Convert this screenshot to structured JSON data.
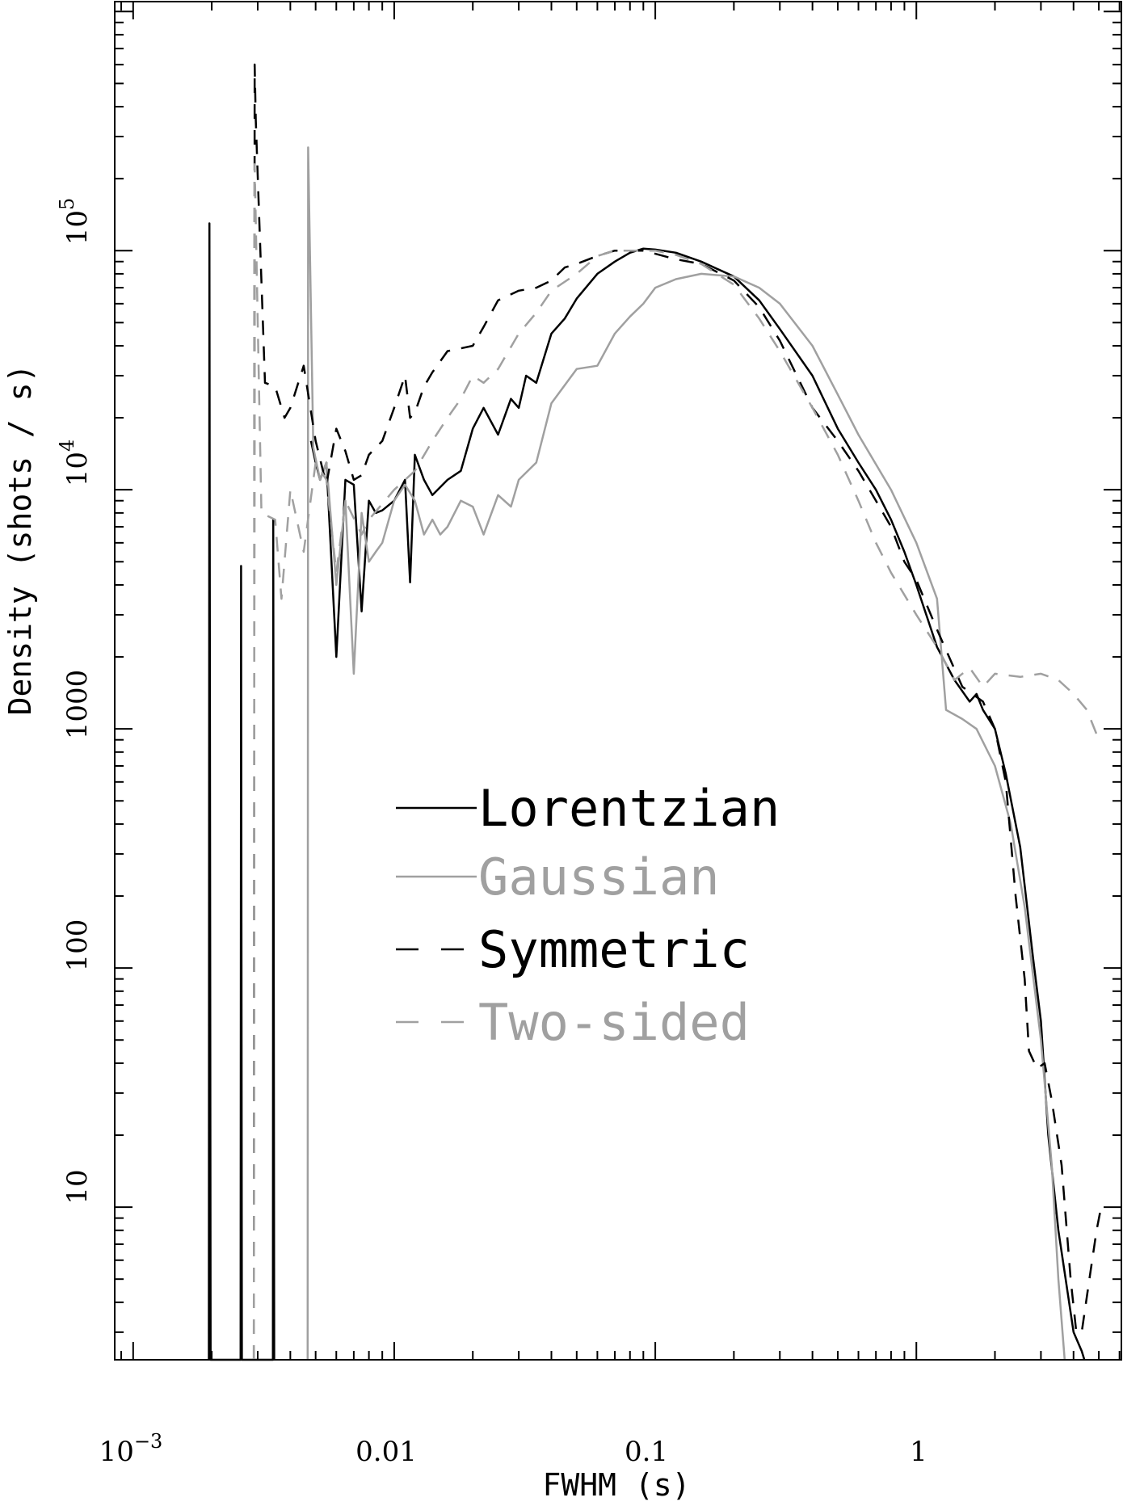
{
  "chart_data": {
    "type": "line",
    "title": "",
    "xlabel": "FWHM (s)",
    "ylabel": "Density (shots / s)",
    "xscale": "log",
    "yscale": "log",
    "xlim": [
      0.00085,
      6.1
    ],
    "ylim": [
      2.3,
      1100000
    ],
    "x_ticks": [
      {
        "value": 0.001,
        "base": "10",
        "exp": "−3"
      },
      {
        "value": 0.01,
        "label": "0.01"
      },
      {
        "value": 0.1,
        "label": "0.1"
      },
      {
        "value": 1,
        "label": "1"
      }
    ],
    "y_ticks": [
      {
        "value": 10,
        "label": "10"
      },
      {
        "value": 100,
        "label": "100"
      },
      {
        "value": 1000,
        "label": "1000"
      },
      {
        "value": 10000,
        "base": "10",
        "exp": "4"
      },
      {
        "value": 100000,
        "base": "10",
        "exp": "5"
      }
    ],
    "legend": {
      "position": "center"
    },
    "series": [
      {
        "name": "Lorentzian",
        "color": "#000000",
        "dash": "solid",
        "points": [
          [
            0.00195,
            2.3
          ],
          [
            0.00196,
            130000
          ],
          [
            0.00198,
            2.3
          ],
          [
            0.00258,
            2.3
          ],
          [
            0.00259,
            4800
          ],
          [
            0.00261,
            2.3
          ],
          [
            0.00343,
            2.3
          ],
          [
            0.00344,
            7500
          ],
          [
            0.00347,
            2.3
          ]
        ],
        "extra": [
          [
            0.0048,
            16000
          ],
          [
            0.005,
            13000
          ],
          [
            0.0052,
            11000
          ],
          [
            0.0055,
            13000
          ],
          [
            0.006,
            2000
          ],
          [
            0.0065,
            11000
          ],
          [
            0.007,
            10500
          ],
          [
            0.0075,
            3100
          ],
          [
            0.008,
            9000
          ],
          [
            0.0085,
            8000
          ],
          [
            0.009,
            8200
          ],
          [
            0.01,
            9000
          ],
          [
            0.011,
            11000
          ],
          [
            0.0115,
            4100
          ],
          [
            0.012,
            14000
          ],
          [
            0.013,
            11000
          ],
          [
            0.014,
            9500
          ],
          [
            0.016,
            11000
          ],
          [
            0.018,
            12000
          ],
          [
            0.02,
            18000
          ],
          [
            0.022,
            22000
          ],
          [
            0.025,
            17000
          ],
          [
            0.028,
            24000
          ],
          [
            0.03,
            22000
          ],
          [
            0.032,
            30000
          ],
          [
            0.035,
            28000
          ],
          [
            0.04,
            45000
          ],
          [
            0.045,
            52000
          ],
          [
            0.05,
            63000
          ],
          [
            0.06,
            80000
          ],
          [
            0.07,
            90000
          ],
          [
            0.08,
            98000
          ],
          [
            0.09,
            102000
          ],
          [
            0.1,
            101000
          ],
          [
            0.12,
            98000
          ],
          [
            0.15,
            90000
          ],
          [
            0.2,
            78000
          ],
          [
            0.25,
            62000
          ],
          [
            0.3,
            47000
          ],
          [
            0.4,
            30000
          ],
          [
            0.5,
            18000
          ],
          [
            0.6,
            13000
          ],
          [
            0.7,
            10000
          ],
          [
            0.8,
            7500
          ],
          [
            0.9,
            5500
          ],
          [
            1.0,
            4000
          ],
          [
            1.2,
            2200
          ],
          [
            1.4,
            1600
          ],
          [
            1.6,
            1300
          ],
          [
            1.7,
            1400
          ],
          [
            1.8,
            1200
          ],
          [
            2.0,
            1000
          ],
          [
            2.2,
            650
          ],
          [
            2.5,
            320
          ],
          [
            2.8,
            110
          ],
          [
            3.0,
            60
          ],
          [
            3.2,
            20
          ],
          [
            3.5,
            8
          ],
          [
            4.0,
            3
          ],
          [
            4.3,
            2.5
          ],
          [
            4.4,
            2.3
          ]
        ]
      },
      {
        "name": "Gaussian",
        "color": "#a0a0a0",
        "dash": "solid",
        "points": [
          [
            0.00466,
            2.3
          ],
          [
            0.00468,
            270000
          ],
          [
            0.0049,
            15000
          ],
          [
            0.0052,
            11000
          ],
          [
            0.0055,
            13000
          ],
          [
            0.006,
            4000
          ],
          [
            0.0065,
            9000
          ],
          [
            0.007,
            1700
          ],
          [
            0.0075,
            8000
          ],
          [
            0.008,
            5000
          ],
          [
            0.0085,
            5500
          ],
          [
            0.009,
            6000
          ],
          [
            0.01,
            9000
          ],
          [
            0.011,
            10500
          ],
          [
            0.012,
            9000
          ],
          [
            0.013,
            6500
          ],
          [
            0.014,
            7500
          ],
          [
            0.015,
            6500
          ],
          [
            0.016,
            7000
          ],
          [
            0.018,
            9000
          ],
          [
            0.02,
            8500
          ],
          [
            0.022,
            6500
          ],
          [
            0.025,
            9500
          ],
          [
            0.028,
            8500
          ],
          [
            0.03,
            11000
          ],
          [
            0.035,
            13000
          ],
          [
            0.04,
            23000
          ],
          [
            0.05,
            32000
          ],
          [
            0.06,
            33000
          ],
          [
            0.07,
            45000
          ],
          [
            0.08,
            53000
          ],
          [
            0.09,
            60000
          ],
          [
            0.1,
            70000
          ],
          [
            0.12,
            76000
          ],
          [
            0.15,
            80000
          ],
          [
            0.2,
            78000
          ],
          [
            0.25,
            70000
          ],
          [
            0.3,
            60000
          ],
          [
            0.4,
            40000
          ],
          [
            0.5,
            25000
          ],
          [
            0.6,
            17000
          ],
          [
            0.8,
            10000
          ],
          [
            1.0,
            6000
          ],
          [
            1.2,
            3500
          ],
          [
            1.3,
            1200
          ],
          [
            1.5,
            1100
          ],
          [
            1.7,
            1000
          ],
          [
            2.0,
            700
          ],
          [
            2.3,
            400
          ],
          [
            2.6,
            180
          ],
          [
            3.0,
            50
          ],
          [
            3.3,
            15
          ],
          [
            3.5,
            5
          ],
          [
            3.7,
            2.3
          ]
        ]
      },
      {
        "name": "Symmetric",
        "color": "#000000",
        "dash": "dashed",
        "points": [
          [
            0.0029,
            2.3
          ],
          [
            0.00292,
            600000
          ],
          [
            0.00295,
            350000
          ],
          [
            0.0032,
            28000
          ],
          [
            0.0035,
            27000
          ],
          [
            0.0038,
            20000
          ],
          [
            0.004,
            22000
          ],
          [
            0.0045,
            33000
          ],
          [
            0.005,
            16000
          ],
          [
            0.0055,
            10500
          ],
          [
            0.006,
            18000
          ],
          [
            0.0065,
            14500
          ],
          [
            0.007,
            11000
          ],
          [
            0.0075,
            11500
          ],
          [
            0.008,
            14000
          ],
          [
            0.009,
            16000
          ],
          [
            0.01,
            22000
          ],
          [
            0.011,
            30000
          ],
          [
            0.0115,
            20000
          ],
          [
            0.012,
            21000
          ],
          [
            0.013,
            27000
          ],
          [
            0.014,
            31000
          ],
          [
            0.016,
            38000
          ],
          [
            0.02,
            40000
          ],
          [
            0.022,
            48000
          ],
          [
            0.025,
            62000
          ],
          [
            0.03,
            68000
          ],
          [
            0.035,
            70000
          ],
          [
            0.04,
            75000
          ],
          [
            0.045,
            85000
          ],
          [
            0.05,
            88000
          ],
          [
            0.06,
            95000
          ],
          [
            0.07,
            100000
          ],
          [
            0.08,
            100000
          ],
          [
            0.09,
            100000
          ],
          [
            0.1,
            97000
          ],
          [
            0.12,
            92000
          ],
          [
            0.15,
            88000
          ],
          [
            0.2,
            75000
          ],
          [
            0.25,
            58000
          ],
          [
            0.3,
            42000
          ],
          [
            0.4,
            22000
          ],
          [
            0.5,
            16000
          ],
          [
            0.6,
            12000
          ],
          [
            0.7,
            9000
          ],
          [
            0.8,
            7000
          ],
          [
            0.9,
            5000
          ],
          [
            1.0,
            4200
          ],
          [
            1.2,
            2600
          ],
          [
            1.5,
            1500
          ],
          [
            1.8,
            1300
          ],
          [
            2.0,
            1000
          ],
          [
            2.2,
            600
          ],
          [
            2.4,
            200
          ],
          [
            2.6,
            90
          ],
          [
            2.7,
            45
          ],
          [
            2.9,
            38
          ],
          [
            3.1,
            40
          ],
          [
            3.3,
            28
          ],
          [
            3.6,
            15
          ],
          [
            3.9,
            5
          ],
          [
            4.1,
            3
          ],
          [
            4.3,
            3
          ],
          [
            4.6,
            5
          ],
          [
            4.9,
            8
          ],
          [
            5.1,
            10
          ]
        ]
      },
      {
        "name": "Two-sided",
        "color": "#a0a0a0",
        "dash": "dashed",
        "points": [
          [
            0.0029,
            2.3
          ],
          [
            0.00292,
            230000
          ],
          [
            0.0031,
            8000
          ],
          [
            0.0035,
            7500
          ],
          [
            0.0037,
            3500
          ],
          [
            0.004,
            10000
          ],
          [
            0.0045,
            5500
          ],
          [
            0.005,
            13000
          ],
          [
            0.0055,
            11000
          ],
          [
            0.006,
            4500
          ],
          [
            0.0065,
            9000
          ],
          [
            0.0075,
            6500
          ],
          [
            0.008,
            7500
          ],
          [
            0.01,
            10000
          ],
          [
            0.012,
            12000
          ],
          [
            0.014,
            16000
          ],
          [
            0.016,
            20000
          ],
          [
            0.018,
            24000
          ],
          [
            0.02,
            30000
          ],
          [
            0.022,
            28000
          ],
          [
            0.025,
            32000
          ],
          [
            0.03,
            45000
          ],
          [
            0.035,
            55000
          ],
          [
            0.04,
            68000
          ],
          [
            0.05,
            80000
          ],
          [
            0.06,
            95000
          ],
          [
            0.07,
            100000
          ],
          [
            0.08,
            100000
          ],
          [
            0.1,
            100000
          ],
          [
            0.12,
            96000
          ],
          [
            0.15,
            88000
          ],
          [
            0.2,
            72000
          ],
          [
            0.25,
            52000
          ],
          [
            0.3,
            38000
          ],
          [
            0.4,
            22000
          ],
          [
            0.5,
            14000
          ],
          [
            0.6,
            9000
          ],
          [
            0.7,
            6000
          ],
          [
            0.8,
            4500
          ],
          [
            1.0,
            3000
          ],
          [
            1.2,
            2200
          ],
          [
            1.4,
            1600
          ],
          [
            1.6,
            1800
          ],
          [
            1.8,
            1500
          ],
          [
            2.0,
            1700
          ],
          [
            2.5,
            1650
          ],
          [
            3.0,
            1700
          ],
          [
            3.5,
            1600
          ],
          [
            4.0,
            1400
          ],
          [
            4.5,
            1200
          ],
          [
            5.0,
            900
          ]
        ]
      }
    ]
  }
}
